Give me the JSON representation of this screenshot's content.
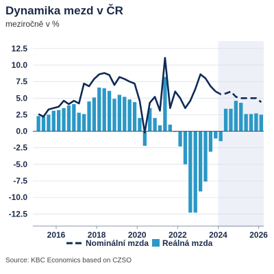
{
  "chart_data": {
    "type": "bar+line",
    "title": "Dynamika mezd v ČR",
    "subtitle": "meziročně v %",
    "ylim": [
      -13.5,
      13
    ],
    "y_ticks": [
      "12.5",
      "10.0",
      "7.5",
      "5.0",
      "2.5",
      "0.0",
      "-2.5",
      "-5.0",
      "-7.5",
      "-10.0",
      "-12.5"
    ],
    "y_tick_values": [
      12.5,
      10.0,
      7.5,
      5.0,
      2.5,
      0.0,
      -2.5,
      -5.0,
      -7.5,
      -10.0,
      -12.5
    ],
    "x_ticks": [
      "2016",
      "2018",
      "2020",
      "2022",
      "2024",
      "2026"
    ],
    "x_tick_values": [
      2016,
      2018,
      2020,
      2022,
      2024,
      2026
    ],
    "forecast_from": 2024.0,
    "x_end": 2026.25,
    "grid": "horizontal",
    "legend_position": "bottom",
    "quarters": [
      "2015Q1",
      "2015Q2",
      "2015Q3",
      "2015Q4",
      "2016Q1",
      "2016Q2",
      "2016Q3",
      "2016Q4",
      "2017Q1",
      "2017Q2",
      "2017Q3",
      "2017Q4",
      "2018Q1",
      "2018Q2",
      "2018Q3",
      "2018Q4",
      "2019Q1",
      "2019Q2",
      "2019Q3",
      "2019Q4",
      "2020Q1",
      "2020Q2",
      "2020Q3",
      "2020Q4",
      "2021Q1",
      "2021Q2",
      "2021Q3",
      "2021Q4",
      "2022Q1",
      "2022Q2",
      "2022Q3",
      "2022Q4",
      "2023Q1",
      "2023Q2",
      "2023Q3",
      "2023Q4",
      "2024Q1",
      "2024Q2",
      "2024Q3",
      "2024Q4",
      "2025Q1",
      "2025Q2",
      "2025Q3",
      "2025Q4",
      "2026Q1"
    ],
    "series": [
      {
        "name": "Nominální mzda",
        "type": "line",
        "values": [
          2.6,
          2.2,
          3.3,
          3.5,
          3.7,
          4.6,
          4.1,
          4.6,
          4.2,
          7.2,
          6.8,
          7.9,
          8.6,
          8.8,
          8.5,
          7.0,
          8.2,
          7.9,
          7.5,
          7.2,
          4.6,
          -0.2,
          4.3,
          5.2,
          3.1,
          11.1,
          3.5,
          6.0,
          5.0,
          3.5,
          4.6,
          6.4,
          8.6,
          8.0,
          6.8,
          6.0,
          5.6,
          5.7,
          6.0,
          5.2,
          5.0,
          5.0,
          5.0,
          5.0,
          4.4
        ],
        "forecast_start_index": 36
      },
      {
        "name": "Reálná mzda",
        "type": "bar",
        "values": [
          2.3,
          2.2,
          2.5,
          3.1,
          3.2,
          3.5,
          3.9,
          4.1,
          2.8,
          2.6,
          4.5,
          5.1,
          6.6,
          6.5,
          6.1,
          4.9,
          5.5,
          5.2,
          4.8,
          4.4,
          2.0,
          -2.2,
          3.5,
          2.0,
          0.9,
          8.2,
          1.0,
          -0.1,
          -2.3,
          -5.0,
          -12.3,
          -12.3,
          -9.1,
          -7.6,
          -3.1,
          -1.1,
          -1.5,
          3.4,
          3.4,
          4.6,
          4.3,
          2.6,
          2.6,
          2.7,
          2.5
        ]
      }
    ],
    "colors": {
      "line": "#0f2a55",
      "bar": "#2b98c6",
      "forecast_band": "#eef0f8",
      "grid": "#d6dbe3",
      "text": "#1b2a4a"
    }
  },
  "legend": {
    "line_label": "Nominální mzda",
    "bar_label": "Reálná mzda"
  },
  "source": "Source: KBC Economics based on CZSO"
}
